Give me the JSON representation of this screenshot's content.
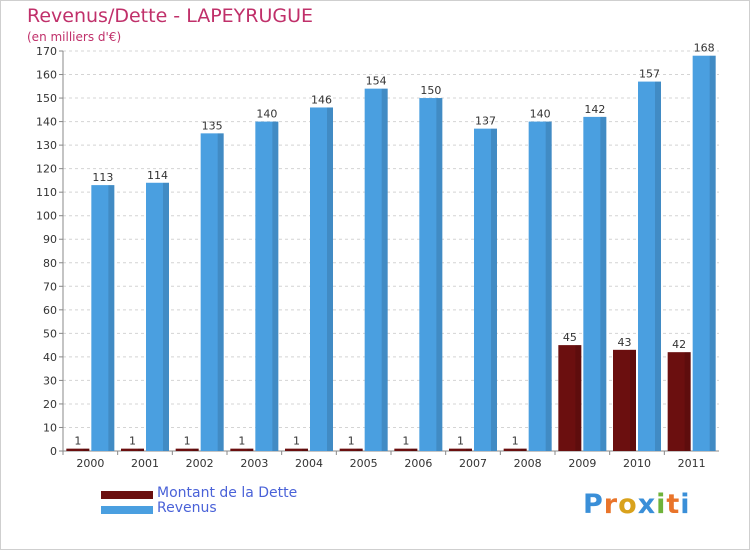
{
  "colors": {
    "dette": "#6b0f0f",
    "revenus": "#4a9fe0",
    "title": "#c0306a",
    "legend_text": "#4a62d8"
  },
  "logo": {
    "text": "Proxiti",
    "letters": [
      "P",
      "r",
      "o",
      "x",
      "i",
      "t",
      "i"
    ],
    "letter_colors": [
      "#3a8fd8",
      "#e9742a",
      "#d9a21c",
      "#3a8fd8",
      "#6fb33a",
      "#e9742a",
      "#3a8fd8"
    ]
  },
  "chart_data": {
    "type": "bar",
    "title": "Revenus/Dette - LAPEYRUGUE",
    "subtitle": "(en milliers d'€)",
    "categories": [
      "2000",
      "2001",
      "2002",
      "2003",
      "2004",
      "2005",
      "2006",
      "2007",
      "2008",
      "2009",
      "2010",
      "2011"
    ],
    "series": [
      {
        "name": "Montant de la Dette",
        "values": [
          1,
          1,
          1,
          1,
          1,
          1,
          1,
          1,
          1,
          45,
          43,
          42
        ]
      },
      {
        "name": "Revenus",
        "values": [
          113,
          114,
          135,
          140,
          146,
          154,
          150,
          137,
          140,
          142,
          157,
          168
        ]
      }
    ],
    "ylim": [
      0,
      170
    ],
    "yticks": [
      0,
      10,
      20,
      30,
      40,
      50,
      60,
      70,
      80,
      90,
      100,
      110,
      120,
      130,
      140,
      150,
      160,
      170
    ],
    "grid": true,
    "legend": "bottom-left"
  }
}
